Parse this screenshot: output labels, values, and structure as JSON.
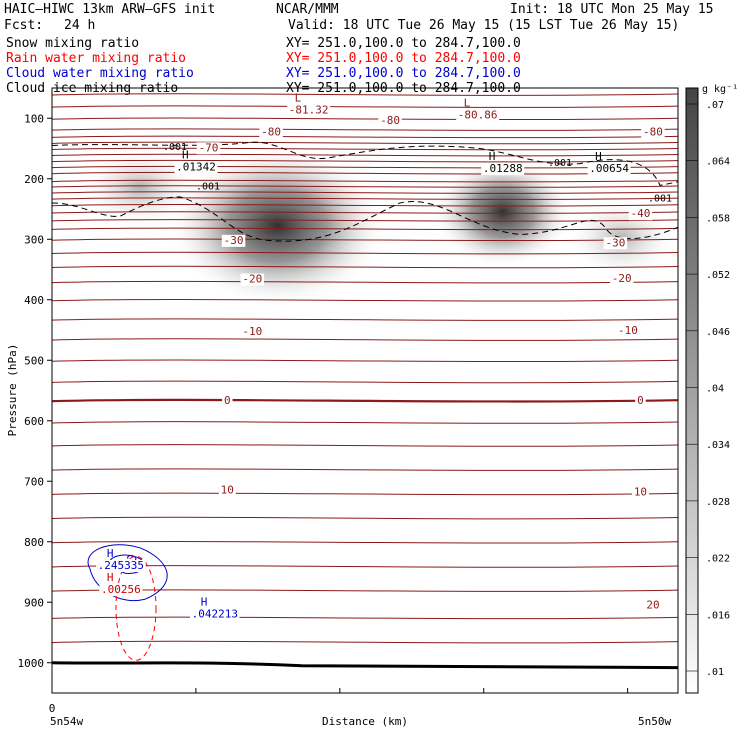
{
  "header": {
    "left_line1": "HAIC–HIWC 13km ARW–GFS init",
    "center_line1": "NCAR/MMM",
    "right_line1": "Init: 18 UTC Mon 25 May 15",
    "fcst_label": "Fcst:",
    "fcst_value": "24 h",
    "valid": "Valid: 18 UTC Tue 26 May 15 (15 LST Tue 26 May 15)"
  },
  "fields": [
    {
      "name": "Snow mixing ratio",
      "xy": "XY= 251.0,100.0 to 284.7,100.0",
      "color": "#000000"
    },
    {
      "name": "Rain water mixing ratio",
      "xy": "XY= 251.0,100.0 to 284.7,100.0",
      "color": "#ff0000"
    },
    {
      "name": "Cloud water mixing ratio",
      "xy": "XY= 251.0,100.0 to 284.7,100.0",
      "color": "#0000cc"
    },
    {
      "name": "Cloud ice mixing ratio",
      "xy": "XY= 251.0,100.0 to 284.7,100.0",
      "color": "#000000"
    }
  ],
  "chart_data": {
    "type": "contour",
    "xlabel": "Distance (km)",
    "ylabel": "Pressure (hPa)",
    "x_tick_labels": [
      "0"
    ],
    "x_end_labels": [
      "5n54w",
      "5n50w"
    ],
    "y_ticks": [
      100,
      200,
      300,
      400,
      500,
      600,
      700,
      800,
      900,
      1000
    ],
    "ylim": [
      1050,
      50
    ],
    "colorbar": {
      "unit": "g kg⁻¹",
      "ticks": [
        ".01",
        ".016",
        ".022",
        ".028",
        ".034",
        ".04",
        ".046",
        ".052",
        ".058",
        ".064",
        ".07"
      ]
    },
    "temperature_contours": {
      "color": "#8b1a1a",
      "labeled_levels": [
        {
          "value": "-80",
          "p": 122,
          "x": 0.35
        },
        {
          "value": "-80",
          "p": 103,
          "x": 0.54
        },
        {
          "value": "-80",
          "p": 122,
          "x": 0.96
        },
        {
          "value": "-70",
          "p": 148,
          "x": 0.25
        },
        {
          "value": "-40",
          "p": 257,
          "x": 0.94
        },
        {
          "value": "-30",
          "p": 301,
          "x": 0.29
        },
        {
          "value": "-30",
          "p": 305,
          "x": 0.9
        },
        {
          "value": "-20",
          "p": 365,
          "x": 0.32
        },
        {
          "value": "-20",
          "p": 364,
          "x": 0.91
        },
        {
          "value": "-10",
          "p": 452,
          "x": 0.32
        },
        {
          "value": "-10",
          "p": 450,
          "x": 0.92
        },
        {
          "value": "0",
          "p": 566,
          "x": 0.28
        },
        {
          "value": "0",
          "p": 566,
          "x": 0.94
        },
        {
          "value": "10",
          "p": 714,
          "x": 0.28
        },
        {
          "value": "10",
          "p": 717,
          "x": 0.94
        },
        {
          "value": "20",
          "p": 904,
          "x": 0.96
        }
      ]
    },
    "extrema": [
      {
        "type": "L",
        "label": "-81.32",
        "p": 92,
        "x": 0.41
      },
      {
        "type": "L",
        "label": "-80.86",
        "p": 100,
        "x": 0.68
      },
      {
        "type": "H",
        "label": ".01342",
        "p": 186,
        "x": 0.23
      },
      {
        "type": "H",
        "label": ".01288",
        "p": 189,
        "x": 0.72
      },
      {
        "type": "H",
        "label": ".00654",
        "p": 189,
        "x": 0.89
      },
      {
        "type": "H",
        "label": ".245335",
        "p": 845,
        "x": 0.11
      },
      {
        "type": "H",
        "label": ".00256",
        "p": 885,
        "x": 0.11
      },
      {
        "type": "H",
        "label": ".042213",
        "p": 925,
        "x": 0.26
      }
    ],
    "dashed_contour_labels": [
      ".001",
      ".001",
      ".001",
      ".001"
    ],
    "series": [
      {
        "name": "Snow mixing ratio",
        "style": "shaded",
        "maxima": [
          {
            "x": 0.36,
            "p": 278,
            "value": 0.064
          },
          {
            "x": 0.72,
            "p": 255,
            "value": 0.062
          },
          {
            "x": 0.14,
            "p": 214,
            "value": 0.018
          },
          {
            "x": 0.91,
            "p": 298,
            "value": 0.03
          }
        ]
      },
      {
        "name": "Cloud ice mixing ratio",
        "style": "dashed",
        "level": 0.001
      },
      {
        "name": "Cloud water mixing ratio",
        "style": "blue contour",
        "max": 0.245335
      },
      {
        "name": "Rain water mixing ratio",
        "style": "red dashed contour",
        "max": 0.00256
      }
    ]
  }
}
